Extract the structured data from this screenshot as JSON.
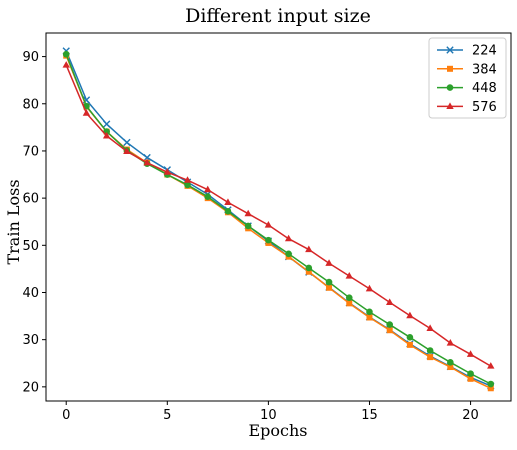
{
  "chart_data": {
    "type": "line",
    "title": "Different input size",
    "xlabel": "Epochs",
    "ylabel": "Train Loss",
    "xlim": [
      -1,
      22
    ],
    "ylim": [
      17,
      95
    ],
    "xticks": [
      0,
      5,
      10,
      15,
      20
    ],
    "yticks": [
      20,
      30,
      40,
      50,
      60,
      70,
      80,
      90
    ],
    "grid": false,
    "legend_position": "top-right",
    "x": [
      0,
      1,
      2,
      3,
      4,
      5,
      6,
      7,
      8,
      9,
      10,
      11,
      12,
      13,
      14,
      15,
      16,
      17,
      18,
      19,
      20,
      21
    ],
    "series": [
      {
        "name": "224",
        "color": "#1f77b4",
        "marker": "x",
        "values": [
          91.2,
          80.8,
          75.7,
          71.8,
          68.6,
          66.0,
          63.4,
          60.8,
          57.5,
          54.1,
          50.9,
          47.6,
          44.3,
          41.1,
          37.8,
          34.8,
          32.1,
          29.1,
          26.5,
          24.3,
          22.0,
          20.2
        ]
      },
      {
        "name": "384",
        "color": "#ff7f0e",
        "marker": "square",
        "values": [
          90.2,
          79.4,
          74.1,
          70.3,
          67.5,
          65.0,
          62.6,
          60.0,
          57.0,
          53.6,
          50.5,
          47.6,
          44.4,
          41.0,
          37.7,
          34.7,
          32.0,
          28.9,
          26.3,
          24.2,
          21.7,
          19.7
        ]
      },
      {
        "name": "448",
        "color": "#2ca02c",
        "marker": "circle",
        "values": [
          90.5,
          79.5,
          74.1,
          70.1,
          67.3,
          65.0,
          62.8,
          60.3,
          57.2,
          54.1,
          51.1,
          48.2,
          45.2,
          42.2,
          38.9,
          35.9,
          33.2,
          30.5,
          27.7,
          25.2,
          22.8,
          20.6
        ]
      },
      {
        "name": "576",
        "color": "#d62728",
        "marker": "triangle",
        "values": [
          88.2,
          78.0,
          73.2,
          69.9,
          67.5,
          65.5,
          63.8,
          61.8,
          59.1,
          56.7,
          54.3,
          51.4,
          49.1,
          46.2,
          43.5,
          40.8,
          37.9,
          35.1,
          32.4,
          29.3,
          26.9,
          24.4
        ]
      }
    ]
  }
}
